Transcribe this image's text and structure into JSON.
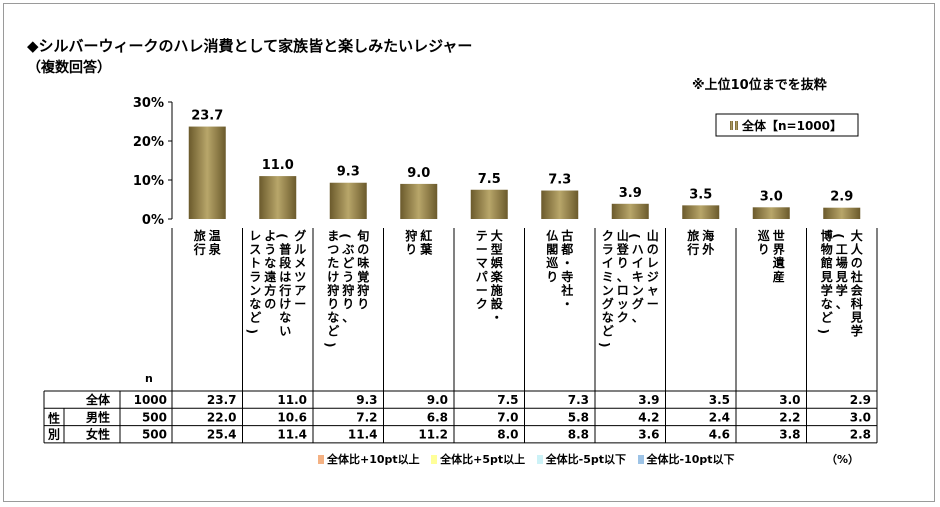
{
  "title": "◆シルバーウィークのハレ消費として家族皆と楽しみたいレジャー",
  "subtitle": "（複数回答）",
  "note": "※上位10位までを抜粋",
  "legend": "全体【n=1000】",
  "percent_unit": "（%）",
  "n_label": "n",
  "highlight_legend": [
    {
      "label": "全体比+10pt以上",
      "color": "#f4b183"
    },
    {
      "label": "全体比+5pt以上",
      "color": "#ffff99"
    },
    {
      "label": "全体比-5pt以下",
      "color": "#ccf2f7"
    },
    {
      "label": "全体比-10pt以下",
      "color": "#9dc3e6"
    }
  ],
  "chart_data": {
    "type": "bar",
    "y_ticks": [
      "30%",
      "20%",
      "10%",
      "0%"
    ],
    "ylim": [
      0,
      30
    ],
    "categories": [
      "温泉旅行",
      "グルメツアー（普段は行けないような遠方のレストランなど）",
      "旬の味覚狩り（ぶどう狩り、まつたけ狩りなど）",
      "紅葉狩り",
      "大型娯楽施設・テーマパーク",
      "古都・寺社・仏閣巡り",
      "山のレジャー（ハイキング、山登り、ロッククライミングなど）",
      "海外旅行",
      "世界遺産巡り",
      "大人の社会科見学（工場見学、博物館見学など）"
    ],
    "category_lines": [
      [
        "温泉",
        "旅行"
      ],
      [
        "グルメツアー",
        "（普段は行けない",
        "ような遠方の",
        "レストランなど）"
      ],
      [
        "旬の味覚狩り",
        "（ぶどう狩り、",
        "まつたけ狩りなど）"
      ],
      [
        "紅葉",
        "狩り"
      ],
      [
        "大型娯楽施設・",
        "テーマパーク"
      ],
      [
        "古都・寺社・",
        "仏閣巡り"
      ],
      [
        "山のレジャー",
        "（ハイキング、",
        "山登り、ロック",
        "クライミングなど）"
      ],
      [
        "海外",
        "旅行"
      ],
      [
        "世界遺産",
        "巡り"
      ],
      [
        "大人の社会科見学",
        "（工場見学、",
        "博物館見学など）"
      ]
    ],
    "series": [
      {
        "name": "全体",
        "values": [
          23.7,
          11.0,
          9.3,
          9.0,
          7.5,
          7.3,
          3.9,
          3.5,
          3.0,
          2.9
        ]
      }
    ],
    "table": {
      "group_label": "性別",
      "rows": [
        {
          "label": "全体",
          "n": "1000",
          "values": [
            "23.7",
            "11.0",
            "9.3",
            "9.0",
            "7.5",
            "7.3",
            "3.9",
            "3.5",
            "3.0",
            "2.9"
          ]
        },
        {
          "label": "男性",
          "n": "500",
          "values": [
            "22.0",
            "10.6",
            "7.2",
            "6.8",
            "7.0",
            "5.8",
            "4.2",
            "2.4",
            "2.2",
            "3.0"
          ]
        },
        {
          "label": "女性",
          "n": "500",
          "values": [
            "25.4",
            "11.4",
            "11.4",
            "11.2",
            "8.0",
            "8.8",
            "3.6",
            "4.6",
            "3.8",
            "2.8"
          ]
        }
      ]
    }
  }
}
